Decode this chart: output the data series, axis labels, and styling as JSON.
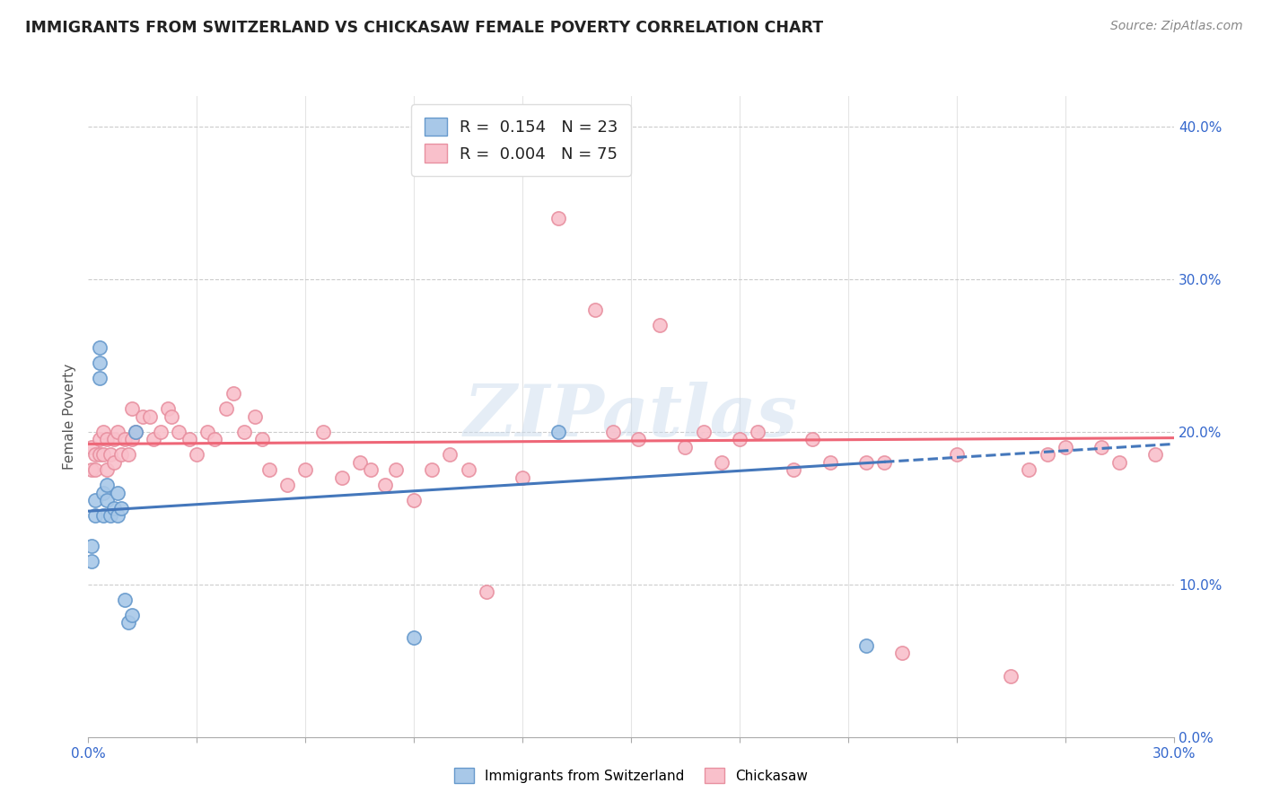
{
  "title": "IMMIGRANTS FROM SWITZERLAND VS CHICKASAW FEMALE POVERTY CORRELATION CHART",
  "source": "Source: ZipAtlas.com",
  "ylabel": "Female Poverty",
  "xmin": 0.0,
  "xmax": 0.3,
  "ymin": 0.0,
  "ymax": 0.42,
  "legend_entry1": "R =  0.154   N = 23",
  "legend_entry2": "R =  0.004   N = 75",
  "legend_label1": "Immigrants from Switzerland",
  "legend_label2": "Chickasaw",
  "blue_color": "#A8C8E8",
  "pink_color": "#F9C0CB",
  "blue_edge_color": "#6699CC",
  "pink_edge_color": "#E890A0",
  "blue_line_color": "#4477BB",
  "pink_line_color": "#EE6677",
  "watermark": "ZIPatlas",
  "blue_line_x0": 0.0,
  "blue_line_y0": 0.148,
  "blue_line_x1": 0.3,
  "blue_line_y1": 0.192,
  "pink_line_x0": 0.0,
  "pink_line_y0": 0.192,
  "pink_line_x1": 0.3,
  "pink_line_y1": 0.196,
  "blue_scatter_x": [
    0.001,
    0.001,
    0.002,
    0.002,
    0.003,
    0.003,
    0.003,
    0.004,
    0.004,
    0.005,
    0.005,
    0.006,
    0.007,
    0.008,
    0.008,
    0.009,
    0.01,
    0.011,
    0.012,
    0.013,
    0.09,
    0.13,
    0.215
  ],
  "blue_scatter_y": [
    0.125,
    0.115,
    0.155,
    0.145,
    0.255,
    0.245,
    0.235,
    0.16,
    0.145,
    0.165,
    0.155,
    0.145,
    0.15,
    0.16,
    0.145,
    0.15,
    0.09,
    0.075,
    0.08,
    0.2,
    0.065,
    0.2,
    0.06
  ],
  "pink_scatter_x": [
    0.001,
    0.001,
    0.002,
    0.002,
    0.003,
    0.003,
    0.004,
    0.004,
    0.005,
    0.005,
    0.006,
    0.007,
    0.007,
    0.008,
    0.009,
    0.01,
    0.011,
    0.012,
    0.012,
    0.013,
    0.015,
    0.017,
    0.018,
    0.02,
    0.022,
    0.023,
    0.025,
    0.028,
    0.03,
    0.033,
    0.035,
    0.038,
    0.04,
    0.043,
    0.046,
    0.048,
    0.05,
    0.055,
    0.06,
    0.065,
    0.07,
    0.075,
    0.078,
    0.082,
    0.085,
    0.09,
    0.095,
    0.1,
    0.105,
    0.11,
    0.12,
    0.13,
    0.14,
    0.145,
    0.152,
    0.158,
    0.165,
    0.17,
    0.175,
    0.18,
    0.185,
    0.195,
    0.2,
    0.205,
    0.215,
    0.22,
    0.225,
    0.24,
    0.255,
    0.26,
    0.265,
    0.27,
    0.28,
    0.285,
    0.295
  ],
  "pink_scatter_y": [
    0.19,
    0.175,
    0.185,
    0.175,
    0.195,
    0.185,
    0.2,
    0.185,
    0.195,
    0.175,
    0.185,
    0.195,
    0.18,
    0.2,
    0.185,
    0.195,
    0.185,
    0.195,
    0.215,
    0.2,
    0.21,
    0.21,
    0.195,
    0.2,
    0.215,
    0.21,
    0.2,
    0.195,
    0.185,
    0.2,
    0.195,
    0.215,
    0.225,
    0.2,
    0.21,
    0.195,
    0.175,
    0.165,
    0.175,
    0.2,
    0.17,
    0.18,
    0.175,
    0.165,
    0.175,
    0.155,
    0.175,
    0.185,
    0.175,
    0.095,
    0.17,
    0.34,
    0.28,
    0.2,
    0.195,
    0.27,
    0.19,
    0.2,
    0.18,
    0.195,
    0.2,
    0.175,
    0.195,
    0.18,
    0.18,
    0.18,
    0.055,
    0.185,
    0.04,
    0.175,
    0.185,
    0.19,
    0.19,
    0.18,
    0.185
  ]
}
